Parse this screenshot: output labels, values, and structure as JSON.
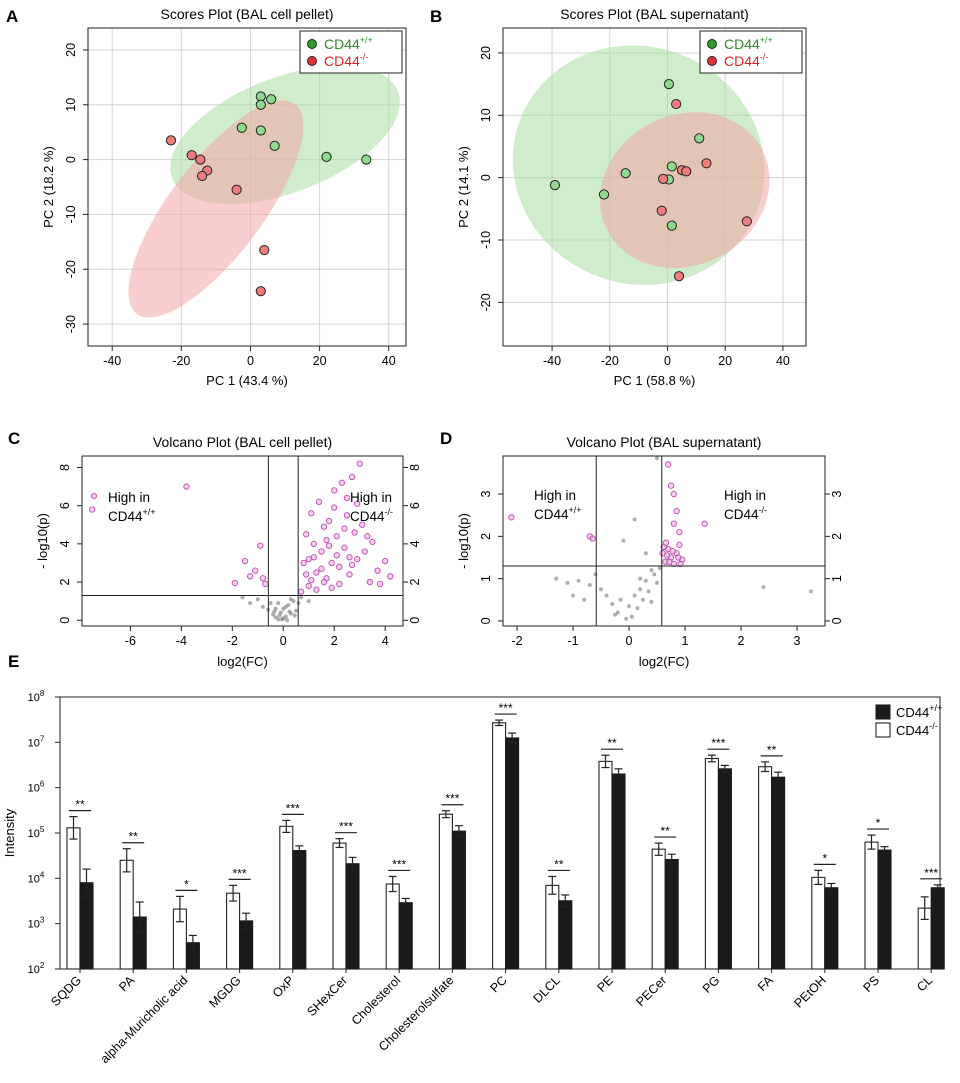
{
  "panels": {
    "A": {
      "letter": "A",
      "chart_data": {
        "type": "scatter",
        "title": "Scores Plot (BAL cell pellet)",
        "xlabel": "PC 1 (43.4 %)",
        "ylabel": "PC 2 (18.2 %)",
        "xlim": [
          -47,
          45
        ],
        "ylim": [
          -34,
          24
        ],
        "xticks": [
          -40,
          -20,
          0,
          20,
          40
        ],
        "yticks": [
          20,
          10,
          0,
          -10,
          -20,
          -30
        ],
        "grid": true,
        "legend_position": "top-right",
        "series": [
          {
            "name": "CD44",
            "sup": "+/+",
            "color": "#2e8b2e",
            "fill": "#8fd98f",
            "ellipse_fill": "#a8dca0",
            "ellipse": {
              "cx": 10,
              "cy": 4.5,
              "rx": 35,
              "ry": 10.5,
              "angle_deg": -21
            },
            "points": [
              [
                3,
                11.5
              ],
              [
                6,
                11
              ],
              [
                3,
                10
              ],
              [
                -2.5,
                5.8
              ],
              [
                3,
                5.3
              ],
              [
                7,
                2.5
              ],
              [
                22,
                0.5
              ],
              [
                33.5,
                0
              ]
            ]
          },
          {
            "name": "CD44",
            "sup": "-/-",
            "color": "#dd2222",
            "fill": "#f07c7c",
            "ellipse_fill": "#f4a6a6",
            "ellipse": {
              "cx": -10,
              "cy": -9,
              "rx": 38,
              "ry": 8.5,
              "angle_deg": -53
            },
            "points": [
              [
                -23,
                3.5
              ],
              [
                -17,
                0.8
              ],
              [
                -14.5,
                0
              ],
              [
                -12.5,
                -2
              ],
              [
                -14,
                -3
              ],
              [
                -4,
                -5.5
              ],
              [
                4,
                -16.5
              ],
              [
                3,
                -24
              ]
            ]
          }
        ]
      }
    },
    "B": {
      "letter": "B",
      "chart_data": {
        "type": "scatter",
        "title": "Scores Plot (BAL supernatant)",
        "xlabel": "PC 1 (58.8 %)",
        "ylabel": "PC 2 (14.1 %)",
        "xlim": [
          -57,
          48
        ],
        "ylim": [
          -27,
          24
        ],
        "xticks": [
          -40,
          -20,
          0,
          20,
          40
        ],
        "yticks": [
          20,
          10,
          0,
          -10,
          -20
        ],
        "grid": true,
        "legend_position": "top-right",
        "series": [
          {
            "name": "CD44",
            "sup": "+/+",
            "color": "#2e8b2e",
            "fill": "#8fd98f",
            "ellipse_fill": "#a8dca0",
            "ellipse": {
              "cx": -10,
              "cy": 2,
              "rx": 44,
              "ry": 19,
              "angle_deg": 22
            },
            "points": [
              [
                0.5,
                15
              ],
              [
                11,
                6.3
              ],
              [
                -14.5,
                0.7
              ],
              [
                1.5,
                1.8
              ],
              [
                0.5,
                -0.3
              ],
              [
                -39,
                -1.2
              ],
              [
                -22,
                -2.7
              ],
              [
                1.5,
                -7.7
              ]
            ]
          },
          {
            "name": "CD44",
            "sup": "-/-",
            "color": "#dd2222",
            "fill": "#f07c7c",
            "ellipse_fill": "#f4a6a6",
            "ellipse": {
              "cx": 6,
              "cy": -2,
              "rx": 26,
              "ry": 14,
              "angle_deg": 62
            },
            "points": [
              [
                3,
                11.8
              ],
              [
                13.5,
                2.3
              ],
              [
                5,
                1.2
              ],
              [
                6.5,
                1
              ],
              [
                -1.5,
                -0.2
              ],
              [
                -2,
                -5.3
              ],
              [
                27.5,
                -7
              ],
              [
                4,
                -15.8
              ]
            ]
          }
        ]
      }
    },
    "C": {
      "letter": "C",
      "chart_data": {
        "type": "scatter",
        "title": "Volcano Plot (BAL cell pellet)",
        "xlabel": "log2(FC)",
        "ylabel": "- log10(p)",
        "xlim": [
          -7.9,
          4.7
        ],
        "ylim": [
          -0.3,
          8.6
        ],
        "xticks": [
          -6,
          -4,
          -2,
          0,
          2,
          4
        ],
        "yticks": [
          0,
          2,
          4,
          6,
          8
        ],
        "right_ticks": [
          0,
          2,
          4,
          6,
          8
        ],
        "vlines": [
          -0.585,
          0.585
        ],
        "hline": 1.3,
        "legend_position": "top-left",
        "annotations": [
          {
            "line1": "High in",
            "line2": "CD44",
            "sup": "+/+"
          },
          {
            "line1": "High in",
            "line2": "CD44",
            "sup": "-/-"
          }
        ],
        "significant_points": [
          [
            -7.5,
            5.8
          ],
          [
            -3.8,
            7.0
          ],
          [
            -1.9,
            1.95
          ],
          [
            -1.5,
            3.1
          ],
          [
            -1.3,
            2.3
          ],
          [
            -0.9,
            3.9
          ],
          [
            -0.8,
            2.2
          ],
          [
            -0.7,
            1.9
          ],
          [
            -1.1,
            2.6
          ],
          [
            0.8,
            3.0
          ],
          [
            0.9,
            4.5
          ],
          [
            1.0,
            3.2
          ],
          [
            1.1,
            5.6
          ],
          [
            1.2,
            4.0
          ],
          [
            1.3,
            2.5
          ],
          [
            1.4,
            6.2
          ],
          [
            1.5,
            3.6
          ],
          [
            1.6,
            4.9
          ],
          [
            1.7,
            2.2
          ],
          [
            1.8,
            5.2
          ],
          [
            1.9,
            3.0
          ],
          [
            2.0,
            6.8
          ],
          [
            2.1,
            4.4
          ],
          [
            2.2,
            2.8
          ],
          [
            2.3,
            7.2
          ],
          [
            2.4,
            3.8
          ],
          [
            2.5,
            5.5
          ],
          [
            2.6,
            2.4
          ],
          [
            2.7,
            7.5
          ],
          [
            2.8,
            4.6
          ],
          [
            2.9,
            3.2
          ],
          [
            3.0,
            8.2
          ],
          [
            3.1,
            5.0
          ],
          [
            3.2,
            3.6
          ],
          [
            3.4,
            2.0
          ],
          [
            3.5,
            4.1
          ],
          [
            3.7,
            2.6
          ],
          [
            4.0,
            3.1
          ],
          [
            4.2,
            2.3
          ],
          [
            3.8,
            1.9
          ],
          [
            0.7,
            1.5
          ],
          [
            1.0,
            1.8
          ],
          [
            1.3,
            1.6
          ],
          [
            1.6,
            2.0
          ],
          [
            1.9,
            1.7
          ],
          [
            2.2,
            1.9
          ],
          [
            0.9,
            2.4
          ],
          [
            1.2,
            3.3
          ],
          [
            1.5,
            2.7
          ],
          [
            1.8,
            3.9
          ],
          [
            2.1,
            3.4
          ],
          [
            2.4,
            4.8
          ],
          [
            2.7,
            2.9
          ],
          [
            2.0,
            5.9
          ],
          [
            2.5,
            6.4
          ],
          [
            1.7,
            4.2
          ],
          [
            1.1,
            2.1
          ],
          [
            2.9,
            6.1
          ],
          [
            3.3,
            4.4
          ],
          [
            2.6,
            3.3
          ]
        ],
        "nonsignificant_points": [
          [
            -0.4,
            0.3
          ],
          [
            -0.3,
            0.15
          ],
          [
            -0.2,
            0.05
          ],
          [
            -0.1,
            0.4
          ],
          [
            0,
            0.6
          ],
          [
            0.1,
            0.2
          ],
          [
            0.2,
            0.8
          ],
          [
            0.3,
            0.35
          ],
          [
            0.4,
            1.0
          ],
          [
            0.5,
            0.5
          ],
          [
            -0.5,
            0.9
          ],
          [
            -0.6,
            0.55
          ],
          [
            -0.8,
            0.7
          ],
          [
            -1.0,
            1.1
          ],
          [
            -1.3,
            0.9
          ],
          [
            -1.6,
            1.2
          ],
          [
            -0.2,
            0.9
          ],
          [
            0.0,
            0.1
          ],
          [
            0.1,
            0.7
          ],
          [
            -0.3,
            0.6
          ],
          [
            0.3,
            1.1
          ],
          [
            0.6,
            0.9
          ],
          [
            0.7,
            1.2
          ],
          [
            1.0,
            1.0
          ],
          [
            0.45,
            0.25
          ],
          [
            -0.15,
            0.25
          ],
          [
            0.25,
            0.45
          ],
          [
            -0.05,
            0.05
          ],
          [
            0.15,
            0.0
          ],
          [
            -0.35,
            0.45
          ]
        ]
      }
    },
    "D": {
      "letter": "D",
      "chart_data": {
        "type": "scatter",
        "title": "Volcano Plot (BAL supernatant)",
        "xlabel": "log2(FC)",
        "ylabel": "- log10(p)",
        "xlim": [
          -2.25,
          3.5
        ],
        "ylim": [
          -0.12,
          3.9
        ],
        "xticks": [
          -2,
          -1,
          0,
          1,
          2,
          3
        ],
        "yticks": [
          0,
          1,
          2,
          3
        ],
        "right_ticks": [
          0,
          1,
          2,
          3
        ],
        "vlines": [
          -0.585,
          0.585
        ],
        "hline": 1.3,
        "annotations": [
          {
            "line1": "High in",
            "line2": "CD44",
            "sup": "+/+"
          },
          {
            "line1": "High in",
            "line2": "CD44",
            "sup": "-/-"
          }
        ],
        "significant_points": [
          [
            -2.1,
            2.45
          ],
          [
            -0.7,
            2.0
          ],
          [
            -0.65,
            1.95
          ],
          [
            0.7,
            3.7
          ],
          [
            0.75,
            3.2
          ],
          [
            0.8,
            3.0
          ],
          [
            0.85,
            2.6
          ],
          [
            0.8,
            2.3
          ],
          [
            0.9,
            2.1
          ],
          [
            1.35,
            2.3
          ],
          [
            0.6,
            1.6
          ],
          [
            0.65,
            1.4
          ],
          [
            0.7,
            1.7
          ],
          [
            0.75,
            1.5
          ],
          [
            0.8,
            1.35
          ],
          [
            0.85,
            1.6
          ],
          [
            0.9,
            1.8
          ],
          [
            0.95,
            1.45
          ],
          [
            0.62,
            1.75
          ],
          [
            0.68,
            1.55
          ],
          [
            0.72,
            1.4
          ],
          [
            0.78,
            1.65
          ],
          [
            0.88,
            1.5
          ],
          [
            0.92,
            1.35
          ],
          [
            0.66,
            1.85
          ]
        ],
        "nonsignificant_points": [
          [
            0.5,
            3.85
          ],
          [
            0.1,
            2.4
          ],
          [
            -0.1,
            1.9
          ],
          [
            0.3,
            1.6
          ],
          [
            0.2,
            1.0
          ],
          [
            0.4,
            1.2
          ],
          [
            0.5,
            0.9
          ],
          [
            0.35,
            0.7
          ],
          [
            0.25,
            0.5
          ],
          [
            0.15,
            0.3
          ],
          [
            0.05,
            0.1
          ],
          [
            -0.05,
            0.05
          ],
          [
            -0.2,
            0.2
          ],
          [
            -0.3,
            0.4
          ],
          [
            -0.4,
            0.6
          ],
          [
            -0.5,
            0.75
          ],
          [
            -0.7,
            0.85
          ],
          [
            -0.9,
            0.95
          ],
          [
            -1.1,
            0.9
          ],
          [
            -1.3,
            1.0
          ],
          [
            -0.6,
            1.1
          ],
          [
            0.45,
            1.1
          ],
          [
            0.3,
            0.95
          ],
          [
            0.1,
            0.6
          ],
          [
            0.0,
            0.35
          ],
          [
            -0.15,
            0.5
          ],
          [
            0.55,
            1.25
          ],
          [
            0.2,
            0.75
          ],
          [
            -0.25,
            0.15
          ],
          [
            0.4,
            0.45
          ],
          [
            2.4,
            0.8
          ],
          [
            3.25,
            0.7
          ],
          [
            -0.8,
            0.5
          ],
          [
            -1.0,
            0.6
          ]
        ]
      }
    },
    "E": {
      "letter": "E",
      "chart_data": {
        "type": "bar",
        "ylabel": "Intensity",
        "yscale": "log",
        "ylim_exp": [
          2,
          8
        ],
        "ytick_base": "10",
        "ytick_exponents": [
          "2",
          "3",
          "4",
          "5",
          "6",
          "7",
          "8"
        ],
        "legend_position": "top-right",
        "categories": [
          "SQDG",
          "PA",
          "alpha-Muricholic acid",
          "MGDG",
          "OxP",
          "SHexCer",
          "Cholesterol",
          "Cholesterolsulfate",
          "PC",
          "DLCL",
          "PE",
          "PECer",
          "PG",
          "FA",
          "PEtOH",
          "PS",
          "CL"
        ],
        "series": [
          {
            "name": "CD44",
            "sup": "-/-",
            "color": "#ffffff",
            "values": [
              130000,
              25000,
              2100,
              4700,
              140000,
              60000,
              7500,
              260000,
              27000000,
              7000,
              3800000,
              44000,
              4400000,
              2900000,
              10500,
              63000,
              2200
            ],
            "err_upper": [
              230000,
              45000,
              4000,
              7000,
              190000,
              75000,
              11000,
              310000,
              31000000,
              11000,
              5200000,
              60000,
              5200000,
              3700000,
              15000,
              90000,
              3900
            ]
          },
          {
            "name": "CD44",
            "sup": "+/+",
            "color": "#1a1a1a",
            "values": [
              8000,
              1400,
              380,
              1150,
              41000,
              21000,
              2900,
              110000,
              12500000,
              3200,
              2000000,
              26000,
              2600000,
              1700000,
              6200,
              42000,
              6200
            ],
            "err_upper": [
              16000,
              3000,
              550,
              1700,
              52000,
              29000,
              3600,
              145000,
              16000000,
              4300,
              2600000,
              34000,
              3100000,
              2200000,
              7700,
              50000,
              7200
            ]
          }
        ],
        "significance": [
          "**",
          "**",
          "*",
          "***",
          "***",
          "***",
          "***",
          "***",
          "***",
          "**",
          "**",
          "**",
          "***",
          "**",
          "*",
          "*",
          "***"
        ]
      }
    }
  },
  "legend": {
    "base": "CD44",
    "wt_sup": "+/+",
    "ko_sup": "-/-"
  },
  "colors": {
    "wt_point": "#8fd98f",
    "ko_point": "#f07c7c",
    "wt_text": "#2e8b2e",
    "ko_text": "#dd2222",
    "sig": "#cc55bb",
    "nonsig": "#888888"
  }
}
